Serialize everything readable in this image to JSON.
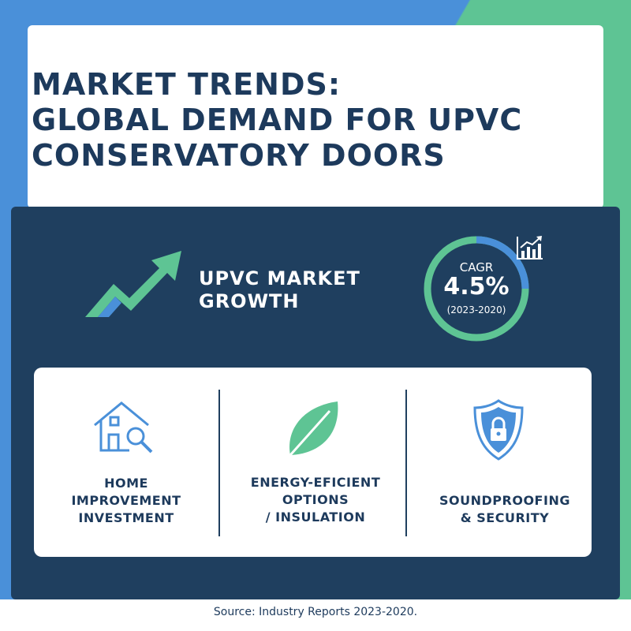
{
  "title": {
    "lines": [
      "MARKET TRENDS:",
      "GLOBAL DEMAND FOR UPVC",
      "CONSERVATORY DOORS"
    ]
  },
  "growth": {
    "lines": [
      "UPVC MARKET",
      "GROWTH"
    ],
    "icon": "trend-up-arrow-icon"
  },
  "cagr": {
    "label": "CAGR",
    "value": "4.5%",
    "period": "(2023-2020)",
    "icon": "bar-chart-icon"
  },
  "features": [
    {
      "icon": "house-search-icon",
      "lines": [
        "HOME",
        "IMPROVEMENT",
        "INVESTMENT"
      ]
    },
    {
      "icon": "leaf-icon",
      "lines": [
        "ENERGY-EFICIENT",
        "OPTIONS",
        "/ INSULATION"
      ]
    },
    {
      "icon": "shield-lock-icon",
      "lines": [
        "SOUNDPROOFING",
        "& SECURITY"
      ]
    }
  ],
  "source": "Source: Industry Reports 2023-2020.",
  "colors": {
    "navy": "#1f3f5f",
    "title_text": "#1d3a5c",
    "blue": "#4a90d9",
    "green": "#5ec494"
  }
}
